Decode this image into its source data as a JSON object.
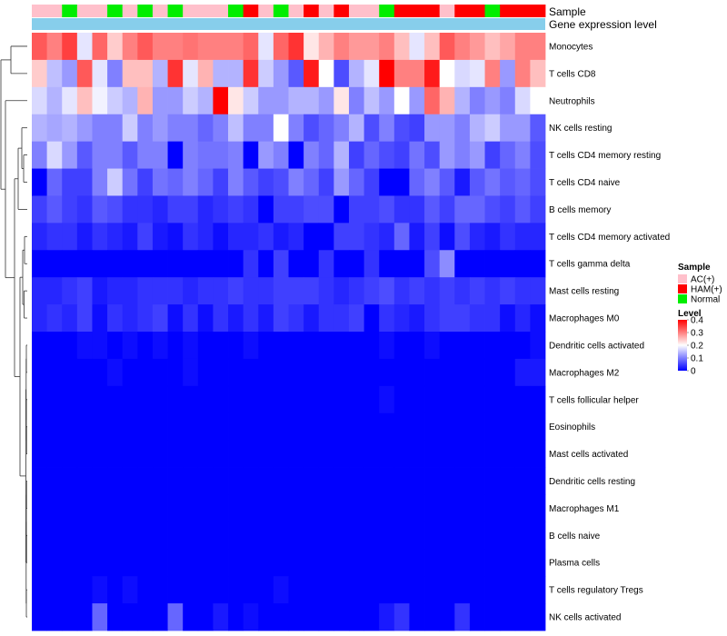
{
  "chart_data": {
    "type": "heatmap",
    "annotation_titles": {
      "sample": "Sample",
      "group": "Gene expression level"
    },
    "row_labels": [
      "Monocytes",
      "T cells CD8",
      "Neutrophils",
      "NK cells resting",
      "T cells CD4 memory resting",
      "T cells CD4 naive",
      "B cells memory",
      "T cells CD4 memory activated",
      "T cells gamma delta",
      "Mast cells resting",
      "Macrophages M0",
      "Dendritic cells activated",
      "Macrophages M2",
      "T cells follicular helper",
      "Eosinophils",
      "Mast cells activated",
      "Dendritic cells resting",
      "Macrophages M1",
      "B cells naive",
      "Plasma cells",
      "T cells regulatory  Tregs",
      "NK cells activated"
    ],
    "sample_groups": [
      "AC",
      "AC",
      "N",
      "AC",
      "AC",
      "N",
      "AC",
      "N",
      "AC",
      "N",
      "AC",
      "AC",
      "AC",
      "N",
      "H",
      "AC",
      "N",
      "AC",
      "H",
      "AC",
      "H",
      "AC",
      "AC",
      "N",
      "H",
      "H",
      "H",
      "AC",
      "H",
      "H",
      "N",
      "H",
      "H",
      "H"
    ],
    "values": [
      [
        0.33,
        0.3,
        0.35,
        0.18,
        0.32,
        0.24,
        0.3,
        0.33,
        0.3,
        0.3,
        0.31,
        0.3,
        0.3,
        0.3,
        0.32,
        0.18,
        0.32,
        0.36,
        0.22,
        0.26,
        0.3,
        0.28,
        0.28,
        0.3,
        0.25,
        0.18,
        0.25,
        0.33,
        0.3,
        0.28,
        0.25,
        0.27,
        0.3,
        0.3
      ],
      [
        0.24,
        0.15,
        0.12,
        0.33,
        0.18,
        0.1,
        0.25,
        0.25,
        0.14,
        0.36,
        0.18,
        0.26,
        0.14,
        0.14,
        0.36,
        0.16,
        0.12,
        0.07,
        0.38,
        0.2,
        0.06,
        0.14,
        0.18,
        0.4,
        0.3,
        0.3,
        0.38,
        0.2,
        0.17,
        0.18,
        0.3,
        0.12,
        0.3,
        0.25
      ],
      [
        0.17,
        0.14,
        0.18,
        0.25,
        0.19,
        0.16,
        0.14,
        0.26,
        0.12,
        0.12,
        0.16,
        0.14,
        0.4,
        0.22,
        0.16,
        0.12,
        0.12,
        0.14,
        0.14,
        0.12,
        0.22,
        0.1,
        0.15,
        0.12,
        0.2,
        0.12,
        0.32,
        0.26,
        0.14,
        0.1,
        0.12,
        0.1,
        0.17,
        0.2
      ],
      [
        0.14,
        0.13,
        0.14,
        0.12,
        0.1,
        0.1,
        0.16,
        0.1,
        0.12,
        0.1,
        0.1,
        0.08,
        0.1,
        0.15,
        0.1,
        0.1,
        0.2,
        0.1,
        0.06,
        0.08,
        0.1,
        0.14,
        0.06,
        0.1,
        0.06,
        0.05,
        0.12,
        0.12,
        0.1,
        0.14,
        0.16,
        0.12,
        0.12,
        0.07
      ],
      [
        0.1,
        0.17,
        0.12,
        0.07,
        0.1,
        0.1,
        0.07,
        0.1,
        0.1,
        0.0,
        0.1,
        0.09,
        0.09,
        0.1,
        0.0,
        0.12,
        0.1,
        0.0,
        0.1,
        0.08,
        0.14,
        0.05,
        0.08,
        0.06,
        0.05,
        0.09,
        0.06,
        0.12,
        0.1,
        0.12,
        0.05,
        0.08,
        0.1,
        0.06
      ],
      [
        0.0,
        0.08,
        0.05,
        0.05,
        0.1,
        0.16,
        0.09,
        0.05,
        0.09,
        0.08,
        0.1,
        0.08,
        0.05,
        0.1,
        0.07,
        0.05,
        0.06,
        0.1,
        0.08,
        0.05,
        0.12,
        0.08,
        0.05,
        0.0,
        0.0,
        0.08,
        0.1,
        0.07,
        0.02,
        0.07,
        0.09,
        0.07,
        0.08,
        0.06
      ],
      [
        0.05,
        0.07,
        0.05,
        0.04,
        0.07,
        0.06,
        0.04,
        0.04,
        0.03,
        0.05,
        0.05,
        0.03,
        0.04,
        0.05,
        0.04,
        0.0,
        0.05,
        0.05,
        0.06,
        0.06,
        0.0,
        0.05,
        0.05,
        0.06,
        0.04,
        0.04,
        0.07,
        0.05,
        0.08,
        0.08,
        0.06,
        0.05,
        0.07,
        0.05
      ],
      [
        0.03,
        0.04,
        0.04,
        0.02,
        0.04,
        0.03,
        0.02,
        0.05,
        0.02,
        0.01,
        0.04,
        0.03,
        0.01,
        0.03,
        0.03,
        0.04,
        0.02,
        0.03,
        0.0,
        0.0,
        0.05,
        0.05,
        0.04,
        0.03,
        0.08,
        0.02,
        0.05,
        0.01,
        0.06,
        0.03,
        0.02,
        0.04,
        0.03,
        0.03
      ],
      [
        0.0,
        0.0,
        0.0,
        0.0,
        0.0,
        0.0,
        0.0,
        0.0,
        0.0,
        0.0,
        0.0,
        0.0,
        0.0,
        0.0,
        0.04,
        0.0,
        0.05,
        0.0,
        0.0,
        0.04,
        0.0,
        0.0,
        0.04,
        0.0,
        0.0,
        0.0,
        0.06,
        0.11,
        0.0,
        0.0,
        0.0,
        0.0,
        0.0,
        0.0
      ],
      [
        0.03,
        0.03,
        0.04,
        0.05,
        0.02,
        0.03,
        0.03,
        0.04,
        0.04,
        0.04,
        0.03,
        0.04,
        0.04,
        0.05,
        0.04,
        0.04,
        0.05,
        0.05,
        0.05,
        0.04,
        0.03,
        0.04,
        0.05,
        0.06,
        0.04,
        0.05,
        0.04,
        0.05,
        0.04,
        0.05,
        0.04,
        0.05,
        0.04,
        0.04
      ],
      [
        0.03,
        0.04,
        0.03,
        0.05,
        0.01,
        0.04,
        0.03,
        0.04,
        0.05,
        0.01,
        0.04,
        0.01,
        0.04,
        0.02,
        0.04,
        0.02,
        0.05,
        0.04,
        0.02,
        0.04,
        0.04,
        0.05,
        0.0,
        0.04,
        0.03,
        0.02,
        0.04,
        0.05,
        0.05,
        0.04,
        0.04,
        0.01,
        0.03,
        0.01
      ],
      [
        0.0,
        0.0,
        0.0,
        0.01,
        0.01,
        0.0,
        0.01,
        0.0,
        0.01,
        0.0,
        0.01,
        0.0,
        0.0,
        0.0,
        0.01,
        0.0,
        0.0,
        0.0,
        0.0,
        0.0,
        0.0,
        0.0,
        0.0,
        0.01,
        0.0,
        0.0,
        0.01,
        0.0,
        0.0,
        0.0,
        0.0,
        0.0,
        0.0,
        0.01
      ],
      [
        0.0,
        0.0,
        0.0,
        0.0,
        0.0,
        0.01,
        0.0,
        0.0,
        0.0,
        0.0,
        0.01,
        0.0,
        0.0,
        0.0,
        0.0,
        0.0,
        0.0,
        0.0,
        0.0,
        0.0,
        0.0,
        0.0,
        0.0,
        0.0,
        0.0,
        0.0,
        0.0,
        0.0,
        0.0,
        0.0,
        0.0,
        0.0,
        0.02,
        0.02
      ],
      [
        0.0,
        0.0,
        0.0,
        0.0,
        0.0,
        0.0,
        0.0,
        0.0,
        0.0,
        0.0,
        0.0,
        0.0,
        0.0,
        0.0,
        0.0,
        0.0,
        0.0,
        0.0,
        0.0,
        0.0,
        0.0,
        0.0,
        0.0,
        0.01,
        0.0,
        0.0,
        0.0,
        0.0,
        0.0,
        0.0,
        0.0,
        0.0,
        0.0,
        0.0
      ],
      [
        0,
        0,
        0,
        0,
        0,
        0,
        0,
        0,
        0,
        0,
        0,
        0,
        0,
        0,
        0,
        0,
        0,
        0,
        0,
        0,
        0,
        0,
        0,
        0,
        0,
        0,
        0,
        0,
        0,
        0,
        0,
        0,
        0,
        0
      ],
      [
        0,
        0,
        0,
        0,
        0,
        0,
        0,
        0,
        0,
        0,
        0,
        0,
        0,
        0,
        0,
        0,
        0,
        0,
        0,
        0,
        0,
        0,
        0,
        0,
        0,
        0,
        0,
        0,
        0,
        0,
        0,
        0,
        0,
        0
      ],
      [
        0,
        0,
        0,
        0,
        0,
        0,
        0,
        0,
        0,
        0,
        0,
        0,
        0,
        0,
        0,
        0,
        0,
        0,
        0,
        0,
        0,
        0,
        0,
        0,
        0,
        0,
        0,
        0,
        0,
        0,
        0,
        0,
        0,
        0
      ],
      [
        0,
        0,
        0,
        0,
        0,
        0,
        0,
        0,
        0,
        0,
        0,
        0,
        0,
        0,
        0,
        0,
        0,
        0,
        0,
        0,
        0,
        0,
        0,
        0,
        0,
        0,
        0,
        0,
        0,
        0,
        0,
        0,
        0,
        0
      ],
      [
        0,
        0,
        0,
        0,
        0,
        0,
        0,
        0,
        0,
        0,
        0,
        0,
        0,
        0,
        0,
        0,
        0,
        0,
        0,
        0,
        0,
        0,
        0,
        0,
        0,
        0,
        0,
        0,
        0,
        0,
        0,
        0,
        0,
        0
      ],
      [
        0,
        0,
        0,
        0,
        0,
        0,
        0,
        0,
        0,
        0,
        0,
        0,
        0,
        0,
        0,
        0,
        0,
        0,
        0,
        0,
        0,
        0,
        0,
        0,
        0,
        0,
        0,
        0,
        0,
        0,
        0,
        0,
        0,
        0
      ],
      [
        0.0,
        0.0,
        0.0,
        0.0,
        0.01,
        0.0,
        0.01,
        0.0,
        0.0,
        0.0,
        0.0,
        0.0,
        0.0,
        0.0,
        0.0,
        0.0,
        0.01,
        0.0,
        0.0,
        0.0,
        0.0,
        0.0,
        0.0,
        0.0,
        0.0,
        0.0,
        0.0,
        0.0,
        0.0,
        0.0,
        0.0,
        0.0,
        0.0,
        0.0
      ],
      [
        0.0,
        0.0,
        0.0,
        0.0,
        0.08,
        0.0,
        0.0,
        0.0,
        0.0,
        0.08,
        0.0,
        0.0,
        0.02,
        0.0,
        0.01,
        0.0,
        0.0,
        0.0,
        0.0,
        0.0,
        0.0,
        0.0,
        0.0,
        0.02,
        0.04,
        0.0,
        0.0,
        0.0,
        0.04,
        0.0,
        0.0,
        0.0,
        0.0,
        0.0
      ]
    ],
    "legend_sample": {
      "title": "Sample",
      "entries": [
        {
          "key": "AC",
          "label": "AC(+)",
          "color": "#ffc0cb"
        },
        {
          "key": "H",
          "label": "HAM(+)",
          "color": "#ff0000"
        },
        {
          "key": "N",
          "label": "Normal",
          "color": "#00ee00"
        }
      ]
    },
    "legend_level": {
      "title": "Level",
      "ticks": [
        0.4,
        0.3,
        0.2,
        0.1,
        0
      ],
      "range": [
        0,
        0.4
      ],
      "colors": {
        "low": "#0000ff",
        "mid": "#ffffff",
        "high": "#ff0000"
      }
    },
    "group_bar_color": "#87ceeb"
  }
}
